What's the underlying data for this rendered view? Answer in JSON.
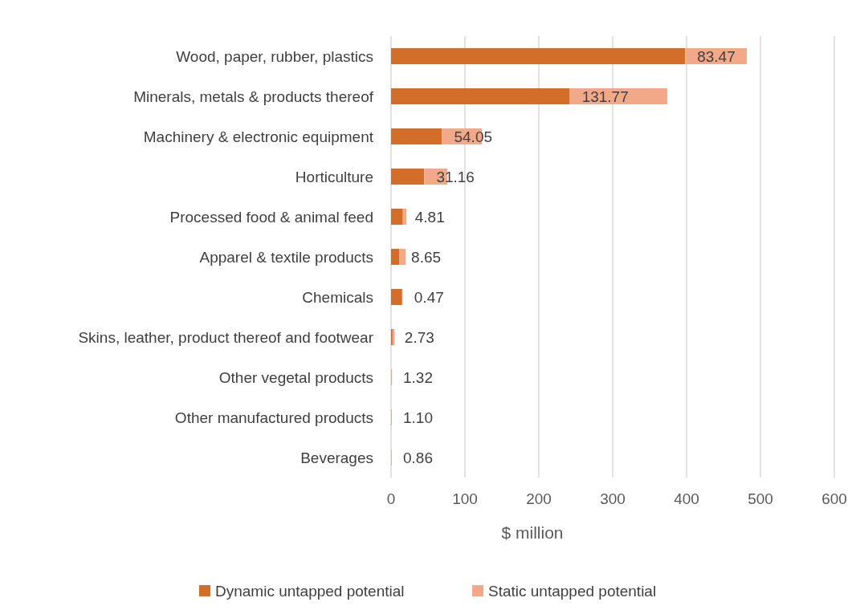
{
  "chart_data": {
    "type": "bar",
    "orientation": "horizontal",
    "stacked": true,
    "categories": [
      "Wood, paper, rubber, plastics",
      "Minerals, metals & products thereof",
      "Machinery & electronic equipment",
      "Horticulture",
      "Processed food & animal feed",
      "Apparel & textile products",
      "Chemicals",
      "Skins, leather, product thereof and footwear",
      "Other vegetal products",
      "Other manufactured products",
      "Beverages"
    ],
    "series": [
      {
        "name": "Dynamic untapped potential",
        "color": "#d36e2a",
        "values": [
          398,
          242,
          69,
          45,
          16,
          11,
          15,
          2,
          0,
          0,
          0
        ]
      },
      {
        "name": "Static untapped potential",
        "color": "#f1a98a",
        "values": [
          83.47,
          131.77,
          54.05,
          31.16,
          4.81,
          8.65,
          0.47,
          2.73,
          1.32,
          1.1,
          0.86
        ],
        "value_labels": [
          "83.47",
          "131.77",
          "54.05",
          "31.16",
          "4.81",
          "8.65",
          "0.47",
          "2.73",
          "1.32",
          "1.10",
          "0.86"
        ]
      }
    ],
    "xlim": [
      0,
      600
    ],
    "xticks": [
      0,
      100,
      200,
      300,
      400,
      500,
      600
    ],
    "xlabel": "$ million",
    "grid": "x",
    "legend": "bottom"
  }
}
